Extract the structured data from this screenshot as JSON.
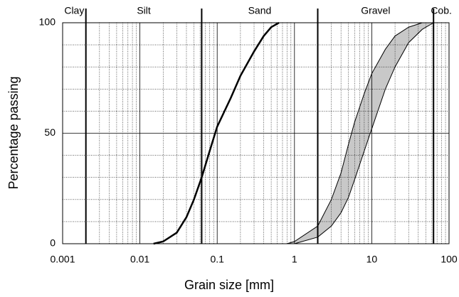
{
  "chart_data": {
    "type": "line",
    "xlabel": "Grain size  [mm]",
    "ylabel": "Percentage passing",
    "xscale": "log",
    "xlim": [
      0.001,
      100
    ],
    "xticks": [
      0.001,
      0.01,
      0.1,
      1,
      10,
      100
    ],
    "ylim": [
      0,
      100
    ],
    "yticks": [
      0,
      50,
      100
    ],
    "grid": true,
    "zones": {
      "labels": [
        "Clay",
        "Silt",
        "Sand",
        "Gravel",
        "Cob."
      ],
      "boundaries": [
        0.002,
        0.063,
        2,
        63
      ]
    },
    "fill_between": [
      1,
      2
    ],
    "fill_color": "#c8c8c8",
    "series": [
      {
        "color": "#000000",
        "width": 2.5,
        "x": [
          0.015,
          0.02,
          0.03,
          0.04,
          0.05,
          0.063,
          0.08,
          0.1,
          0.15,
          0.2,
          0.3,
          0.4,
          0.5,
          0.63
        ],
        "values": [
          0,
          1,
          5,
          12,
          20,
          30,
          42,
          53,
          66,
          76,
          87,
          94,
          98,
          100
        ]
      },
      {
        "color": "#000000",
        "width": 1,
        "x": [
          0.8,
          1,
          2,
          3,
          4,
          5,
          6,
          8,
          10,
          15,
          20,
          30,
          45
        ],
        "values": [
          0,
          1,
          8,
          20,
          32,
          45,
          55,
          68,
          77,
          88,
          94,
          98,
          100
        ]
      },
      {
        "color": "#000000",
        "width": 1,
        "x": [
          1,
          2,
          3,
          4,
          5,
          6,
          8,
          10,
          15,
          20,
          30,
          45,
          63
        ],
        "values": [
          0,
          3,
          8,
          14,
          21,
          29,
          42,
          52,
          70,
          80,
          91,
          97,
          100
        ]
      }
    ]
  }
}
